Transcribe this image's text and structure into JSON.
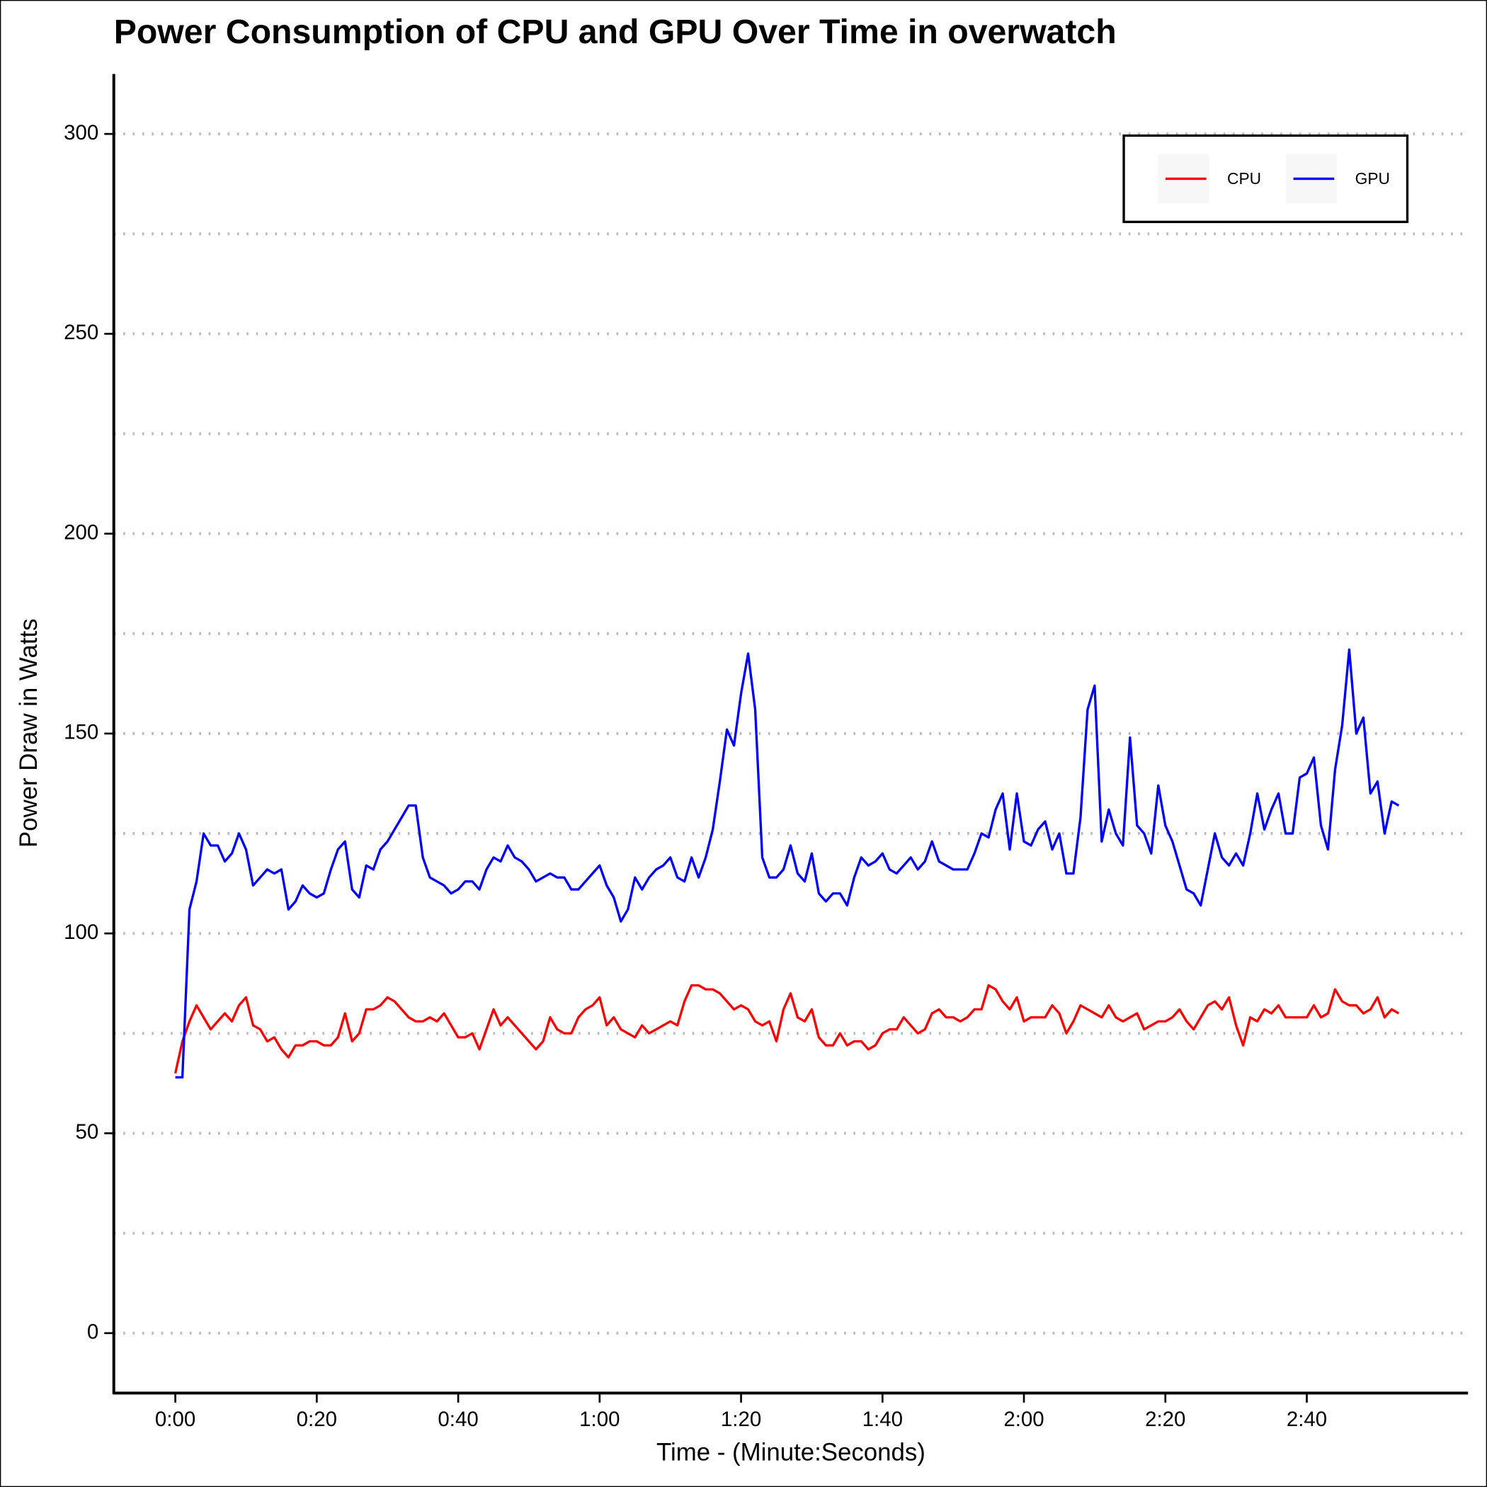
{
  "chart_data": {
    "type": "line",
    "title": "Power Consumption of CPU and GPU Over Time in overwatch",
    "xlabel": "Time - (Minute:Seconds)",
    "ylabel": "Power Draw in Watts",
    "x": [
      0,
      1,
      2,
      3,
      4,
      5,
      6,
      7,
      8,
      9,
      10,
      11,
      12,
      13,
      14,
      15,
      16,
      17,
      18,
      19,
      20,
      21,
      22,
      23,
      24,
      25,
      26,
      27,
      28,
      29,
      30,
      31,
      32,
      33,
      34,
      35,
      36,
      37,
      38,
      39,
      40,
      41,
      42,
      43,
      44,
      45,
      46,
      47,
      48,
      49,
      50,
      51,
      52,
      53,
      54,
      55,
      56,
      57,
      58,
      59,
      60,
      61,
      62,
      63,
      64,
      65,
      66,
      67,
      68,
      69,
      70,
      71,
      72,
      73,
      74,
      75,
      76,
      77,
      78,
      79,
      80,
      81,
      82,
      83,
      84,
      85,
      86,
      87,
      88,
      89,
      90,
      91,
      92,
      93,
      94,
      95,
      96,
      97,
      98,
      99,
      100,
      101,
      102,
      103,
      104,
      105,
      106,
      107,
      108,
      109,
      110,
      111,
      112,
      113,
      114,
      115,
      116,
      117,
      118,
      119,
      120,
      121,
      122,
      123,
      124,
      125,
      126,
      127,
      128,
      129,
      130,
      131,
      132,
      133,
      134,
      135,
      136,
      137,
      138,
      139,
      140,
      141,
      142,
      143,
      144,
      145,
      146,
      147,
      148,
      149,
      150,
      151,
      152,
      153,
      154,
      155,
      156,
      157,
      158,
      159,
      160,
      161,
      162,
      163,
      164,
      165,
      166,
      167,
      168,
      169,
      170,
      171,
      172,
      173
    ],
    "series": [
      {
        "name": "CPU",
        "color": "#ff0000",
        "values": [
          65,
          73,
          78,
          82,
          79,
          76,
          78,
          80,
          78,
          82,
          84,
          77,
          76,
          73,
          74,
          71,
          69,
          72,
          72,
          73,
          73,
          72,
          72,
          74,
          80,
          73,
          75,
          81,
          81,
          82,
          84,
          83,
          81,
          79,
          78,
          78,
          79,
          78,
          80,
          77,
          74,
          74,
          75,
          71,
          76,
          81,
          77,
          79,
          77,
          75,
          73,
          71,
          73,
          79,
          76,
          75,
          75,
          79,
          81,
          82,
          84,
          77,
          79,
          76,
          75,
          74,
          77,
          75,
          76,
          77,
          78,
          77,
          83,
          87,
          87,
          86,
          86,
          85,
          83,
          81,
          82,
          81,
          78,
          77,
          78,
          73,
          81,
          85,
          79,
          78,
          81,
          74,
          72,
          72,
          75,
          72,
          73,
          73,
          71,
          72,
          75,
          76,
          76,
          79,
          77,
          75,
          76,
          80,
          81,
          79,
          79,
          78,
          79,
          81,
          81,
          87,
          86,
          83,
          81,
          84,
          78,
          79,
          79,
          79,
          82,
          80,
          75,
          78,
          82,
          81,
          80,
          79,
          82,
          79,
          78,
          79,
          80,
          76,
          77,
          78,
          78,
          79,
          81,
          78,
          76,
          79,
          82,
          83,
          81,
          84,
          77,
          72,
          79,
          78,
          81,
          80,
          82,
          79,
          79,
          79,
          79,
          82,
          79,
          80,
          86,
          83,
          82,
          82,
          80,
          81,
          84,
          79,
          81,
          80
        ]
      },
      {
        "name": "GPU",
        "color": "#0000ff",
        "values": [
          64,
          64,
          106,
          113,
          125,
          122,
          122,
          118,
          120,
          125,
          121,
          112,
          114,
          116,
          115,
          116,
          106,
          108,
          112,
          110,
          109,
          110,
          116,
          121,
          123,
          111,
          109,
          117,
          116,
          121,
          123,
          126,
          129,
          132,
          132,
          119,
          114,
          113,
          112,
          110,
          111,
          113,
          113,
          111,
          116,
          119,
          118,
          122,
          119,
          118,
          116,
          113,
          114,
          115,
          114,
          114,
          111,
          111,
          113,
          115,
          117,
          112,
          109,
          103,
          106,
          114,
          111,
          114,
          116,
          117,
          119,
          114,
          113,
          119,
          114,
          119,
          126,
          138,
          151,
          147,
          160,
          170,
          156,
          119,
          114,
          114,
          116,
          122,
          115,
          113,
          120,
          110,
          108,
          110,
          110,
          107,
          114,
          119,
          117,
          118,
          120,
          116,
          115,
          117,
          119,
          116,
          118,
          123,
          118,
          117,
          116,
          116,
          116,
          120,
          125,
          124,
          131,
          135,
          121,
          135,
          123,
          122,
          126,
          128,
          121,
          125,
          115,
          115,
          129,
          156,
          162,
          123,
          131,
          125,
          122,
          149,
          127,
          125,
          120,
          137,
          127,
          123,
          117,
          111,
          110,
          107,
          116,
          125,
          119,
          117,
          120,
          117,
          125,
          135,
          126,
          131,
          135,
          125,
          125,
          139,
          140,
          144,
          127,
          121,
          141,
          152,
          171,
          150,
          154,
          135,
          138,
          125,
          133,
          132
        ]
      }
    ],
    "xlim": [
      -8.7,
      182.8
    ],
    "xticks": [
      {
        "value": 0,
        "label": "0:00"
      },
      {
        "value": 20,
        "label": "0:20"
      },
      {
        "value": 40,
        "label": "0:40"
      },
      {
        "value": 60,
        "label": "1:00"
      },
      {
        "value": 80,
        "label": "1:20"
      },
      {
        "value": 100,
        "label": "1:40"
      },
      {
        "value": 120,
        "label": "2:00"
      },
      {
        "value": 140,
        "label": "2:20"
      },
      {
        "value": 160,
        "label": "2:40"
      }
    ],
    "ylim": [
      -15,
      315
    ],
    "yticks": [
      0,
      50,
      100,
      150,
      200,
      250,
      300
    ],
    "y_minor_grid": [
      25,
      75,
      125,
      175,
      225,
      275
    ],
    "grid": true,
    "legend": "top-right"
  }
}
